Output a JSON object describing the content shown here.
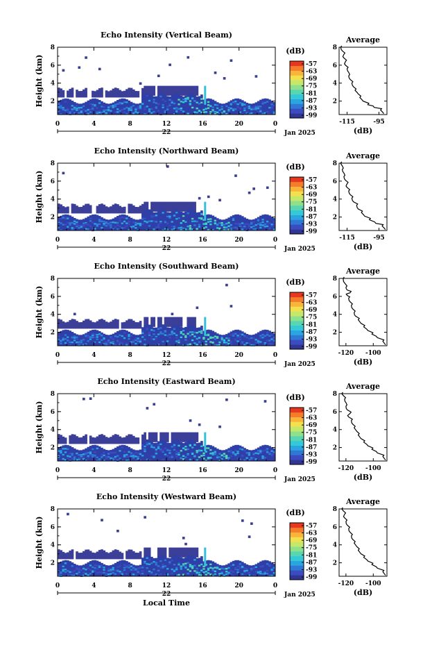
{
  "chart_data": [
    {
      "type": "heatmap",
      "title": "Echo Intensity (Vertical Beam)",
      "ylabel": "Height (km)",
      "yticks": [
        "2",
        "4",
        "6",
        "8"
      ],
      "ylim": [
        0.5,
        8
      ],
      "xticks": [
        "0",
        "4",
        "8",
        "12",
        "16",
        "20",
        "0"
      ],
      "xlim": [
        0,
        24
      ],
      "date_label": "22",
      "month_label": "Jan 2025",
      "colorbar": {
        "unit": "(dB)",
        "ticks": [
          "-57",
          "-63",
          "-69",
          "-75",
          "-81",
          "-87",
          "-93",
          "-99"
        ]
      },
      "profile": {
        "title": "Average",
        "xlabel": "(dB)",
        "xticks": [
          "-115",
          "-95"
        ],
        "xlim": [
          -120,
          -90
        ],
        "yticks": [
          "2",
          "4",
          "6",
          "8"
        ],
        "ylim": [
          0.5,
          8
        ],
        "points": [
          [
            -92,
            0.6
          ],
          [
            -94,
            1.0
          ],
          [
            -98,
            1.3
          ],
          [
            -102,
            1.6
          ],
          [
            -105,
            2.0
          ],
          [
            -107,
            2.4
          ],
          [
            -108,
            2.8
          ],
          [
            -110,
            3.2
          ],
          [
            -111,
            3.6
          ],
          [
            -112,
            4.0
          ],
          [
            -113,
            4.4
          ],
          [
            -114,
            4.8
          ],
          [
            -114,
            5.2
          ],
          [
            -115,
            5.6
          ],
          [
            -116,
            6.0
          ],
          [
            -116,
            6.4
          ],
          [
            -117,
            6.8
          ],
          [
            -117,
            7.2
          ],
          [
            -118,
            7.6
          ],
          [
            -119,
            8.0
          ]
        ]
      }
    },
    {
      "type": "heatmap",
      "title": "Echo Intensity (Northward Beam)",
      "ylabel": "Height (km)",
      "yticks": [
        "2",
        "4",
        "6",
        "8"
      ],
      "ylim": [
        0.5,
        8
      ],
      "xticks": [
        "0",
        "4",
        "8",
        "12",
        "16",
        "20",
        "0"
      ],
      "xlim": [
        0,
        24
      ],
      "date_label": "22",
      "month_label": "Jan 2025",
      "colorbar": {
        "unit": "(dB)",
        "ticks": [
          "-57",
          "-63",
          "-69",
          "-75",
          "-81",
          "-87",
          "-93",
          "-99"
        ]
      },
      "profile": {
        "title": "Average",
        "xlabel": "(dB)",
        "xticks": [
          "-115",
          "-95"
        ],
        "xlim": [
          -120,
          -90
        ],
        "yticks": [
          "2",
          "4",
          "6",
          "8"
        ],
        "ylim": [
          0.5,
          8
        ],
        "points": [
          [
            -91,
            0.6
          ],
          [
            -93,
            1.0
          ],
          [
            -97,
            1.3
          ],
          [
            -101,
            1.7
          ],
          [
            -104,
            2.1
          ],
          [
            -106,
            2.5
          ],
          [
            -108,
            2.9
          ],
          [
            -109,
            3.3
          ],
          [
            -111,
            3.7
          ],
          [
            -112,
            4.1
          ],
          [
            -113,
            4.5
          ],
          [
            -114,
            4.9
          ],
          [
            -115,
            5.3
          ],
          [
            -115,
            5.7
          ],
          [
            -116,
            6.1
          ],
          [
            -117,
            6.5
          ],
          [
            -117,
            6.9
          ],
          [
            -118,
            7.3
          ],
          [
            -118,
            7.7
          ],
          [
            -119,
            8.0
          ]
        ]
      }
    },
    {
      "type": "heatmap",
      "title": "Echo Intensity (Southward Beam)",
      "ylabel": "Height (km)",
      "yticks": [
        "2",
        "4",
        "6",
        "8"
      ],
      "ylim": [
        0.5,
        8
      ],
      "xticks": [
        "0",
        "4",
        "8",
        "12",
        "16",
        "20",
        "0"
      ],
      "xlim": [
        0,
        24
      ],
      "date_label": "22",
      "month_label": "Jan 2025",
      "colorbar": {
        "unit": "(dB)",
        "ticks": [
          "-57",
          "-63",
          "-69",
          "-75",
          "-81",
          "-87",
          "-93",
          "-99"
        ]
      },
      "profile": {
        "title": "Average",
        "xlabel": "(dB)",
        "xticks": [
          "-120",
          "-100"
        ],
        "xlim": [
          -125,
          -90
        ],
        "yticks": [
          "2",
          "4",
          "6",
          "8"
        ],
        "ylim": [
          0.5,
          8
        ],
        "points": [
          [
            -91,
            0.6
          ],
          [
            -93,
            1.0
          ],
          [
            -97,
            1.4
          ],
          [
            -101,
            1.8
          ],
          [
            -104,
            2.2
          ],
          [
            -107,
            2.6
          ],
          [
            -109,
            3.0
          ],
          [
            -111,
            3.4
          ],
          [
            -113,
            3.8
          ],
          [
            -114,
            4.2
          ],
          [
            -115,
            4.6
          ],
          [
            -116,
            5.0
          ],
          [
            -117,
            5.4
          ],
          [
            -118,
            5.8
          ],
          [
            -119,
            6.1
          ],
          [
            -117,
            6.4
          ],
          [
            -119,
            6.7
          ],
          [
            -120,
            7.0
          ],
          [
            -121,
            7.5
          ],
          [
            -122,
            8.0
          ]
        ]
      }
    },
    {
      "type": "heatmap",
      "title": "Echo Intensity (Eastward Beam)",
      "ylabel": "Height (km)",
      "yticks": [
        "2",
        "4",
        "6",
        "8"
      ],
      "ylim": [
        0.5,
        8
      ],
      "xticks": [
        "0",
        "4",
        "8",
        "12",
        "16",
        "20",
        "0"
      ],
      "xlim": [
        0,
        24
      ],
      "date_label": "22",
      "month_label": "Jan 2025",
      "colorbar": {
        "unit": "(dB)",
        "ticks": [
          "-57",
          "-63",
          "-69",
          "-75",
          "-81",
          "-87",
          "-93",
          "-99"
        ]
      },
      "profile": {
        "title": "Average",
        "xlabel": "(dB)",
        "xticks": [
          "-120",
          "-100"
        ],
        "xlim": [
          -125,
          -90
        ],
        "yticks": [
          "2",
          "4",
          "6",
          "8"
        ],
        "ylim": [
          0.5,
          8
        ],
        "points": [
          [
            -91,
            0.6
          ],
          [
            -93,
            1.0
          ],
          [
            -97,
            1.4
          ],
          [
            -101,
            1.8
          ],
          [
            -104,
            2.2
          ],
          [
            -107,
            2.6
          ],
          [
            -109,
            3.0
          ],
          [
            -111,
            3.4
          ],
          [
            -112,
            3.8
          ],
          [
            -114,
            4.2
          ],
          [
            -115,
            4.6
          ],
          [
            -116,
            5.0
          ],
          [
            -118,
            5.4
          ],
          [
            -117,
            5.8
          ],
          [
            -119,
            6.2
          ],
          [
            -120,
            6.6
          ],
          [
            -120,
            7.0
          ],
          [
            -121,
            7.4
          ],
          [
            -122,
            7.8
          ],
          [
            -123,
            8.0
          ]
        ]
      }
    },
    {
      "type": "heatmap",
      "title": "Echo Intensity (Westward Beam)",
      "ylabel": "Height (km)",
      "yticks": [
        "2",
        "4",
        "6",
        "8"
      ],
      "ylim": [
        0.5,
        8
      ],
      "xticks": [
        "0",
        "4",
        "8",
        "12",
        "16",
        "20",
        "0"
      ],
      "xlim": [
        0,
        24
      ],
      "date_label": "22",
      "month_label": "Jan 2025",
      "xlabel": "Local Time",
      "colorbar": {
        "unit": "(dB)",
        "ticks": [
          "-57",
          "-63",
          "-69",
          "-75",
          "-81",
          "-87",
          "-93",
          "-99"
        ]
      },
      "profile": {
        "title": "Average",
        "xlabel": "(dB)",
        "xticks": [
          "-120",
          "-100"
        ],
        "xlim": [
          -125,
          -90
        ],
        "yticks": [
          "2",
          "4",
          "6",
          "8"
        ],
        "ylim": [
          0.5,
          8
        ],
        "points": [
          [
            -91,
            0.6
          ],
          [
            -93,
            1.0
          ],
          [
            -97,
            1.4
          ],
          [
            -101,
            1.8
          ],
          [
            -104,
            2.2
          ],
          [
            -107,
            2.6
          ],
          [
            -109,
            3.0
          ],
          [
            -111,
            3.4
          ],
          [
            -112,
            3.8
          ],
          [
            -114,
            4.2
          ],
          [
            -115,
            4.6
          ],
          [
            -116,
            5.0
          ],
          [
            -117,
            5.4
          ],
          [
            -118,
            5.8
          ],
          [
            -119,
            6.2
          ],
          [
            -120,
            6.6
          ],
          [
            -121,
            7.0
          ],
          [
            -121,
            7.4
          ],
          [
            -122,
            7.8
          ],
          [
            -123,
            8.0
          ]
        ]
      }
    }
  ]
}
